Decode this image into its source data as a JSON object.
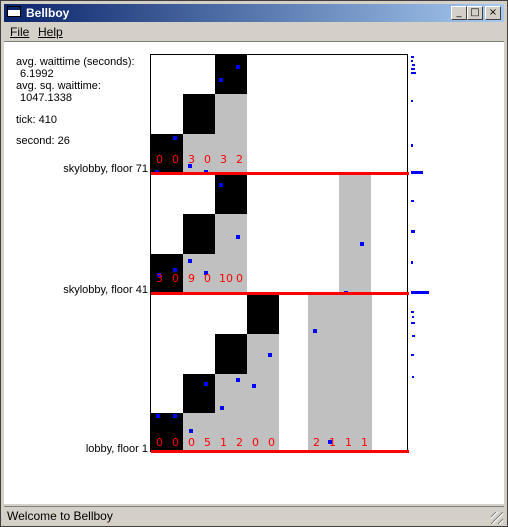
{
  "window": {
    "title": "Bellboy"
  },
  "controls": {
    "minimize": "_",
    "maximize": "□",
    "close": "×"
  },
  "menu": [
    "File",
    "Help"
  ],
  "stats": {
    "avg_wait_label": "avg. waittime (seconds):",
    "avg_wait_value": "6.1992",
    "avg_sq_label": "avg. sq. waittime:",
    "avg_sq_value": "1047.1338",
    "tick": "tick: 410",
    "second": "second: 26"
  },
  "floors": {
    "sky71": "skylobby, floor 71",
    "sky41": "skylobby, floor 41",
    "lobby": "lobby, floor 1"
  },
  "colors": {
    "floor_line": "#ff0000",
    "shaft_gray": "#c0c0c0",
    "car_black": "#000000",
    "passenger": "#0000ff",
    "count_text": "#ff0000"
  },
  "sections": [
    {
      "name": "floor-71",
      "counts": [
        "0",
        "0",
        "3",
        "0",
        "3",
        "2"
      ]
    },
    {
      "name": "floor-41",
      "counts": [
        "3",
        "0",
        "9",
        "0",
        "10",
        "0"
      ]
    },
    {
      "name": "floor-1",
      "counts": [
        "0",
        "0",
        "0",
        "5",
        "1",
        "2",
        "0",
        "0",
        "",
        "",
        "2",
        "1",
        "1",
        "1"
      ]
    }
  ],
  "status": "Welcome to Bellboy"
}
